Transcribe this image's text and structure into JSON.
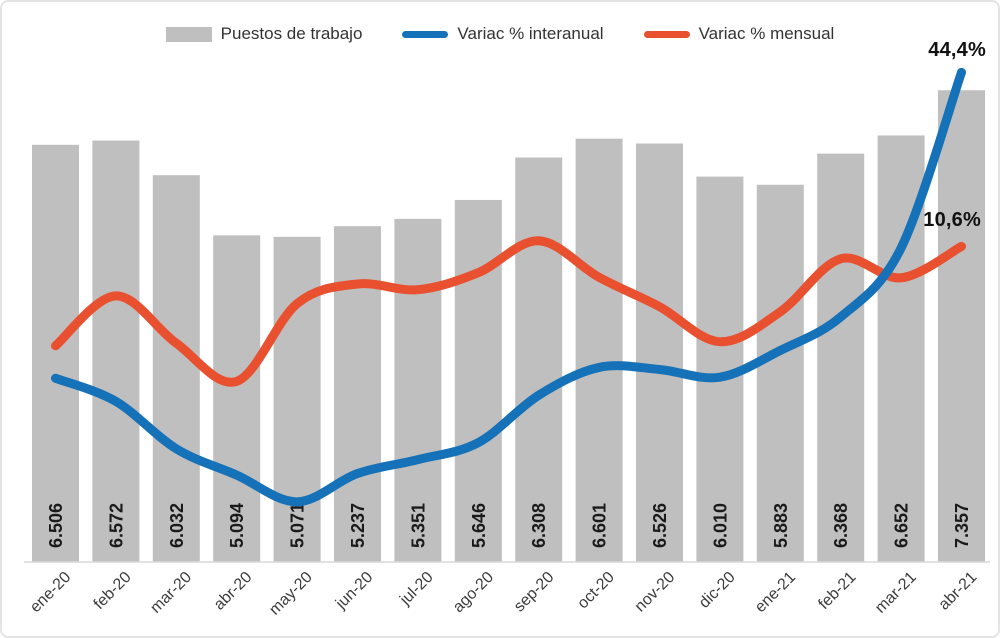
{
  "annotations": {
    "yoy_label": "44,4%",
    "mom_label": "10,6%"
  },
  "chart_data": {
    "type": "combo",
    "title": "",
    "legend_position": "top",
    "gridlines": false,
    "categories": [
      "ene-20",
      "feb-20",
      "mar-20",
      "abr-20",
      "may-20",
      "jun-20",
      "jul-20",
      "ago-20",
      "sep-20",
      "oct-20",
      "nov-20",
      "dic-20",
      "ene-21",
      "feb-21",
      "mar-21",
      "abr-21"
    ],
    "series": [
      {
        "name": "Puestos de trabajo",
        "type": "bar",
        "axis": "primary",
        "color": "#BFBFBF",
        "values": [
          6506,
          6572,
          6032,
          5094,
          5071,
          5237,
          5351,
          5646,
          6308,
          6601,
          6526,
          6010,
          5883,
          6368,
          6652,
          7357
        ],
        "value_labels": [
          "6.506",
          "6.572",
          "6.032",
          "5.094",
          "5.071",
          "5.237",
          "5.351",
          "5.646",
          "6.308",
          "6.601",
          "6.526",
          "6.010",
          "5.883",
          "6.368",
          "6.652",
          "7.357"
        ]
      },
      {
        "name": "Variac % interanual",
        "type": "line",
        "axis": "secondary",
        "color": "#1672B8",
        "values": [
          -15.0,
          -19.5,
          -28.7,
          -33.8,
          -39.0,
          -33.5,
          -30.8,
          -27.5,
          -18.3,
          -12.9,
          -13.3,
          -14.8,
          -9.6,
          -3.1,
          10.3,
          44.4
        ],
        "end_annotation": "44,4%"
      },
      {
        "name": "Variac % mensual",
        "type": "line",
        "axis": "secondary",
        "color": "#E8502F",
        "values": [
          -8.7,
          1.0,
          -8.2,
          -15.6,
          -0.5,
          3.3,
          2.2,
          5.5,
          11.7,
          4.6,
          -1.1,
          -7.9,
          -2.1,
          8.2,
          4.5,
          10.6
        ],
        "end_annotation": "10,6%"
      }
    ],
    "axes": {
      "primary": {
        "min": 0,
        "max": 8000,
        "labels_visible": false
      },
      "secondary": {
        "unit": "%",
        "approx_min": -50,
        "approx_max": 50,
        "labels_visible": false
      }
    },
    "text_colors": {
      "bar_value_labels": "#1a1a1a",
      "x_axis_labels": "#3b3b3b",
      "annotations": "#111111"
    },
    "axis_line_color": "#D9D9D9"
  }
}
